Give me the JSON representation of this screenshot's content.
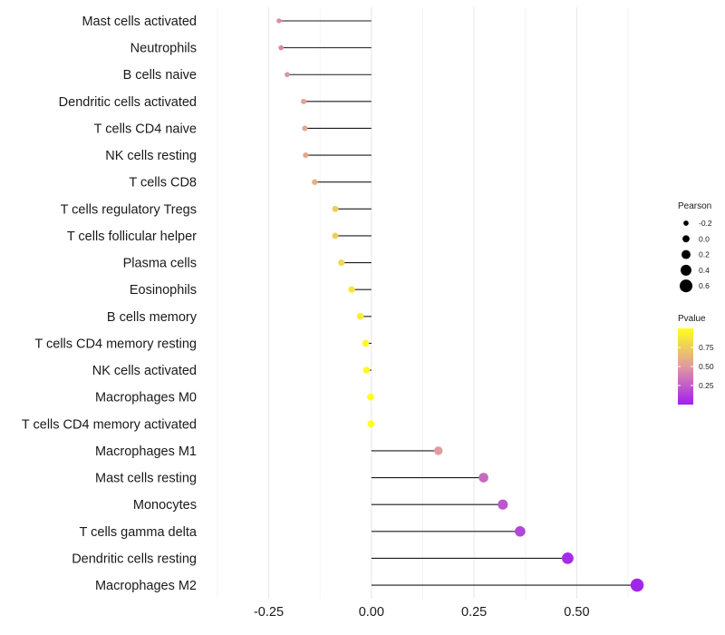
{
  "chart_data": {
    "type": "lollipop",
    "title": "",
    "xlabel": "",
    "ylabel": "",
    "xlim": [
      -0.41,
      0.68
    ],
    "xticks": [
      -0.25,
      0.0,
      0.25,
      0.5
    ],
    "xtick_labels": [
      "-0.25",
      "0.00",
      "0.25",
      "0.50"
    ],
    "categories": [
      "Mast cells activated",
      "Neutrophils",
      "B cells naive",
      "Dendritic cells activated",
      "T cells CD4 naive",
      "NK cells resting",
      "T cells CD8",
      "T cells regulatory  Tregs",
      "T cells follicular helper",
      "Plasma cells",
      "Eosinophils",
      "B cells memory",
      "T cells CD4 memory resting",
      "NK cells activated",
      "Macrophages M0",
      "T cells CD4 memory activated",
      "Macrophages M1",
      "Mast cells resting",
      "Monocytes",
      "T cells gamma delta",
      "Dendritic cells resting",
      "Macrophages M2"
    ],
    "pearson": [
      -0.225,
      -0.22,
      -0.205,
      -0.165,
      -0.162,
      -0.16,
      -0.138,
      -0.088,
      -0.088,
      -0.073,
      -0.048,
      -0.027,
      -0.014,
      -0.012,
      -0.002,
      -0.001,
      0.163,
      0.273,
      0.32,
      0.362,
      0.478,
      0.647
    ],
    "pvalue": [
      0.45,
      0.42,
      0.48,
      0.55,
      0.56,
      0.57,
      0.62,
      0.75,
      0.75,
      0.8,
      0.87,
      0.92,
      0.96,
      0.97,
      0.99,
      0.99,
      0.5,
      0.3,
      0.22,
      0.15,
      0.05,
      0.02
    ],
    "legend_size": {
      "title": "Pearson",
      "values": [
        -0.2,
        0.0,
        0.2,
        0.4,
        0.6
      ],
      "labels": [
        "-0.2",
        "0.0",
        "0.2",
        "0.4",
        "0.6"
      ]
    },
    "legend_color": {
      "title": "Pvalue",
      "labels": [
        "0.75",
        "0.50",
        "0.25"
      ],
      "values": [
        0.75,
        0.5,
        0.25
      ],
      "range": [
        0.0,
        1.0
      ],
      "low_color": "#a020f0",
      "mid_color": "#e09aa0",
      "high_color": "#ffff1a"
    }
  }
}
